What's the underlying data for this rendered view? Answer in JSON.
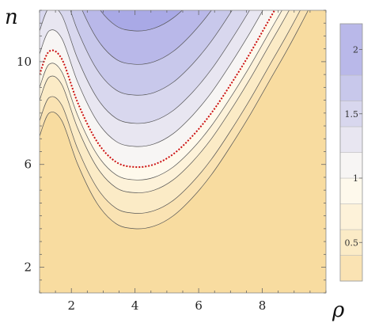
{
  "chart_data": {
    "type": "heatmap",
    "subtype": "filled-contour",
    "title": "",
    "xlabel": "ρ",
    "ylabel": "n",
    "xlim": [
      1,
      10
    ],
    "ylim": [
      1,
      12
    ],
    "x_ticks": [
      2,
      4,
      6,
      8
    ],
    "y_ticks": [
      2,
      6,
      10
    ],
    "legend": {
      "placement": "right",
      "ticks": [
        0.5,
        1,
        1.5,
        2
      ],
      "range": [
        0.2,
        2.2
      ]
    },
    "contour_levels": [
      0.2,
      0.4,
      0.6,
      0.8,
      1.0,
      1.2,
      1.4,
      1.6,
      1.8,
      2.0
    ],
    "highlighted_level": 1.0,
    "highlight_style": "red dotted",
    "colors": {
      "low": "#f8dca0",
      "mid": "#fffdf5",
      "high": "#a9a9e6",
      "contour_line": "#555555",
      "highlight_line": "#cc1111"
    },
    "min_curve": {
      "x": [
        1.0,
        1.3,
        1.7,
        2.2,
        2.8,
        3.4,
        4.0,
        4.6,
        5.2,
        5.8,
        6.4,
        7.0,
        7.6,
        8.2,
        8.8,
        9.4,
        10.0
      ],
      "y": [
        9.5,
        10.4,
        10.1,
        8.4,
        6.9,
        6.1,
        5.9,
        6.0,
        6.4,
        7.1,
        8.0,
        9.1,
        10.3,
        11.6,
        12.9,
        14.3,
        15.8
      ]
    },
    "level_offsets": [
      -2.4,
      -1.8,
      -1.0,
      -0.5,
      0.0,
      0.8,
      1.7,
      2.8,
      4.0,
      5.3
    ]
  }
}
